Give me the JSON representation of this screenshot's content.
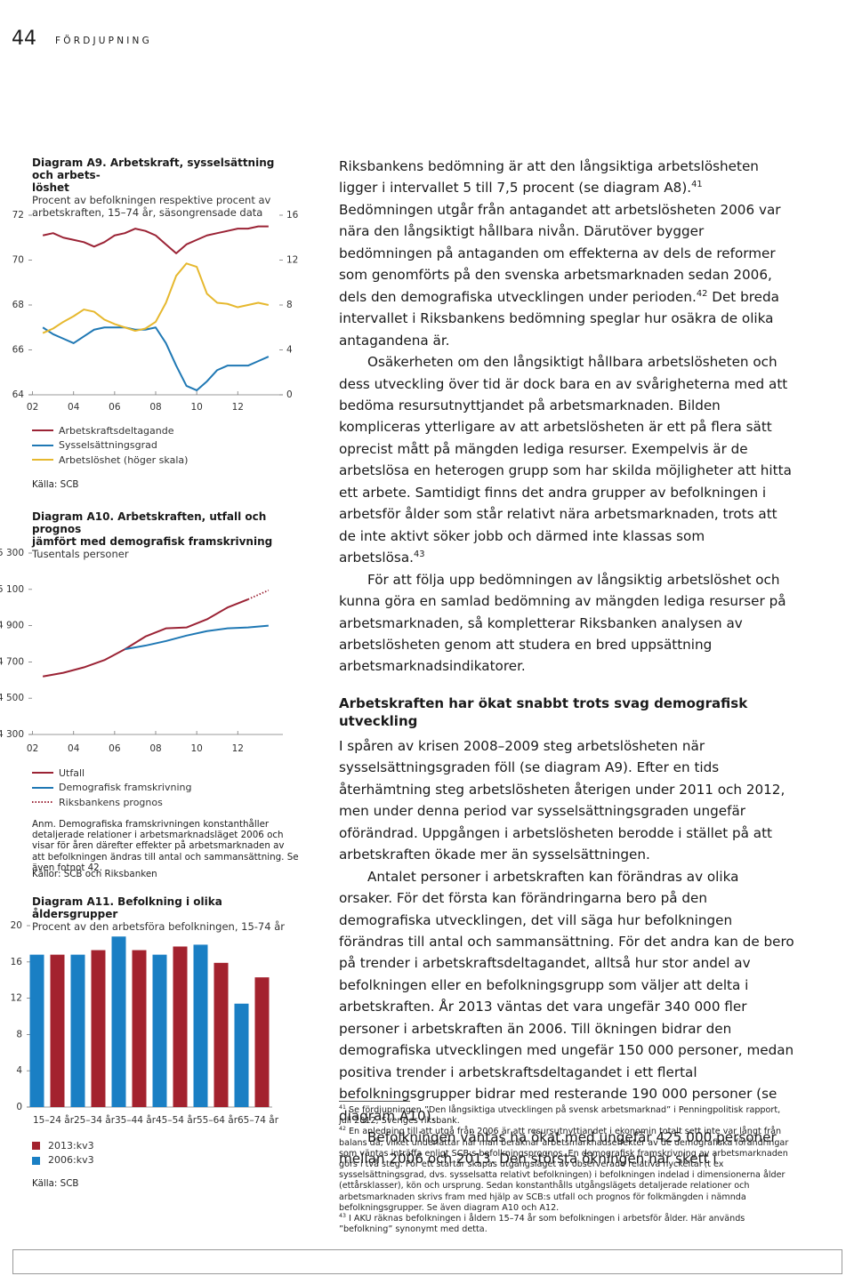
{
  "header": {
    "page_number": "44",
    "section": "FÖRDJUPNING"
  },
  "chart_data": [
    {
      "type": "line",
      "title": [
        "Diagram A9. Arbetskraft, sysselsättning och arbets-",
        "löshet"
      ],
      "subtitle": "Procent av befolkningen respektive procent av arbetskraften, 15–74 år, säsongrensade data",
      "source": "Källa: SCB",
      "x": [
        2002.5,
        2003,
        2003.5,
        2004,
        2004.5,
        2005,
        2005.5,
        2006,
        2006.5,
        2007,
        2007.5,
        2008,
        2008.5,
        2009,
        2009.5,
        2010,
        2010.5,
        2011,
        2011.5,
        2012,
        2012.5,
        2013,
        2013.5
      ],
      "xlim": [
        2001.8,
        2014.2
      ],
      "xticks": [
        {
          "value": 2002,
          "label": "02"
        },
        {
          "value": 2004,
          "label": "04"
        },
        {
          "value": 2006,
          "label": "06"
        },
        {
          "value": 2008,
          "label": "08"
        },
        {
          "value": 2010,
          "label": "10"
        },
        {
          "value": 2012,
          "label": "12"
        }
      ],
      "ylim": [
        64,
        72
      ],
      "yticks": [
        64,
        66,
        68,
        70,
        72
      ],
      "y2lim": [
        0,
        16
      ],
      "y2ticks": [
        0,
        4,
        8,
        12,
        16
      ],
      "series": [
        {
          "name": "Arbetskraftsdeltagande",
          "color": "#9b2335",
          "values": [
            71.1,
            71.2,
            71.0,
            70.9,
            70.8,
            70.6,
            70.8,
            71.1,
            71.2,
            71.4,
            71.3,
            71.1,
            70.7,
            70.3,
            70.7,
            70.9,
            71.1,
            71.2,
            71.3,
            71.4,
            71.4,
            71.5,
            71.5
          ]
        },
        {
          "name": "Sysselsättningsgrad",
          "color": "#1f78b4",
          "values": [
            67.0,
            66.7,
            66.5,
            66.3,
            66.6,
            66.9,
            67.0,
            67.0,
            67.0,
            66.9,
            66.9,
            67.0,
            66.3,
            65.3,
            64.4,
            64.2,
            64.6,
            65.1,
            65.3,
            65.3,
            65.3,
            65.5,
            65.7
          ]
        },
        {
          "name": "Arbetslöshet (höger skala)",
          "color": "#e6b82e",
          "axis": "y2",
          "values": [
            5.5,
            5.9,
            6.5,
            7.0,
            7.6,
            7.4,
            6.7,
            6.3,
            6.0,
            5.7,
            5.9,
            6.5,
            8.2,
            10.6,
            11.7,
            11.4,
            9.0,
            8.2,
            8.1,
            7.8,
            8.0,
            8.2,
            8.0
          ]
        }
      ]
    },
    {
      "type": "line",
      "title": [
        "Diagram A10. Arbetskraften, utfall och prognos",
        "jämfört med demografisk framskrivning"
      ],
      "subtitle": "Tusentals personer",
      "note": "Anm. Demografiska framskrivningen konstanthåller detaljerade relationer i arbetsmarknadsläget 2006 och visar för åren därefter effekter på arbetsmarknaden av att befolkningen ändras till antal och sammansättning. Se även fotnot 42.",
      "source": "Källor: SCB och Riksbanken",
      "xlim": [
        2001.8,
        2014.2
      ],
      "xticks": [
        {
          "value": 2002,
          "label": "02"
        },
        {
          "value": 2004,
          "label": "04"
        },
        {
          "value": 2006,
          "label": "06"
        },
        {
          "value": 2008,
          "label": "08"
        },
        {
          "value": 2010,
          "label": "10"
        },
        {
          "value": 2012,
          "label": "12"
        }
      ],
      "ylim": [
        4300,
        5300
      ],
      "yticks": [
        {
          "value": 4300,
          "label": "4 300"
        },
        {
          "value": 4500,
          "label": "4 500"
        },
        {
          "value": 4700,
          "label": "4 700"
        },
        {
          "value": 4900,
          "label": "4 900"
        },
        {
          "value": 5100,
          "label": "5 100"
        },
        {
          "value": 5300,
          "label": "5 300"
        }
      ],
      "series": [
        {
          "name": "Utfall",
          "color": "#9b2335",
          "x": [
            2002.5,
            2003.5,
            2004.5,
            2005.5,
            2006.5,
            2007.5,
            2008.5,
            2009.5,
            2010.5,
            2011.5,
            2012.5
          ],
          "values": [
            4620,
            4640,
            4670,
            4710,
            4770,
            4840,
            4885,
            4890,
            4935,
            5000,
            5045
          ]
        },
        {
          "name": "Demografisk framskrivning",
          "color": "#1f78b4",
          "x": [
            2006.5,
            2007.5,
            2008.5,
            2009.5,
            2010.5,
            2011.5,
            2012.5,
            2013.5
          ],
          "values": [
            4770,
            4790,
            4815,
            4845,
            4870,
            4885,
            4890,
            4900
          ]
        },
        {
          "name": "Riksbankens prognos",
          "color": "#9b2335",
          "style": "dotted",
          "x": [
            2012.5,
            2013.5
          ],
          "values": [
            5045,
            5095
          ]
        }
      ]
    },
    {
      "type": "bar",
      "title": [
        "Diagram A11. Befolkning i olika åldersgrupper"
      ],
      "subtitle": "Procent av den arbetsföra befolkningen, 15-74 år",
      "source": "Källa: SCB",
      "categories": [
        "15–24 år",
        "25–34 år",
        "35–44 år",
        "45–54 år",
        "55–64 år",
        "65–74 år"
      ],
      "ylim": [
        0,
        20
      ],
      "yticks": [
        0,
        4,
        8,
        12,
        16,
        20
      ],
      "series": [
        {
          "name": "2013:kv3",
          "color": "#a3222e",
          "values": [
            16.8,
            17.3,
            17.3,
            17.7,
            15.9,
            14.3
          ]
        },
        {
          "name": "2006:kv3",
          "color": "#1a7fc4",
          "values": [
            16.8,
            16.8,
            18.8,
            16.8,
            17.9,
            11.4
          ]
        }
      ]
    }
  ],
  "body": [
    {
      "segments": [
        {
          "text": "Riksbankens bedömning är att den långsiktiga arbetslösheten ligger i intervallet 5 till 7,5 procent (se diagram A8)."
        },
        {
          "sup": "41"
        },
        {
          "text": " Bedömningen utgår från antagandet att arbetslösheten 2006 var nära den långsiktigt hållbara nivån. Därutöver bygger bedömningen på antaganden om effekterna av dels de reformer som genomförts på den svenska arbetsmarknaden sedan 2006, dels den demografiska utvecklingen under perioden."
        },
        {
          "sup": "42"
        },
        {
          "text": " Det breda intervallet i Riksbankens bedömning speglar hur osäkra de olika antagandena är."
        }
      ]
    },
    {
      "segments": [
        {
          "text": "Osäkerheten om den långsiktigt hållbara arbetslösheten och dess utveckling över tid är dock bara en av svårigheterna med att bedöma resursutnyttjandet på arbetsmarknaden. Bilden kompliceras ytterligare av att arbetslösheten är ett på flera sätt oprecist mått på mängden lediga resurser. Exempelvis är de arbetslösa en heterogen grupp som har skilda möjligheter att hitta ett arbete. Samtidigt finns det andra grupper av befolkningen i arbetsför ålder som står relativt nära arbetsmarknaden, trots att de inte aktivt söker jobb och därmed inte klassas som arbetslösa."
        },
        {
          "sup": "43"
        }
      ]
    },
    {
      "segments": [
        {
          "text": "För att följa upp bedömningen av långsiktig arbetslöshet och kunna göra en samlad bedömning av mängden lediga resurser på arbetsmarknaden, så kompletterar Riksbanken analysen av arbetslösheten genom att studera en bred uppsättning arbetsmarknadsindikatorer."
        }
      ]
    },
    {
      "heading": "Arbetskraften har ökat snabbt trots svag demografisk utveckling"
    },
    {
      "segments": [
        {
          "text": "I spåren av krisen 2008–2009 steg arbetslösheten när sysselsättningsgraden föll (se diagram A9). Efter en tids återhämtning steg arbetslösheten återigen under 2011 och 2012, men under denna period var sysselsättningsgraden ungefär oförändrad. Uppgången i arbetslösheten berodde i stället på att arbetskraften ökade mer än sysselsättningen."
        }
      ]
    },
    {
      "segments": [
        {
          "text": "Antalet personer i arbetskraften kan förändras av olika orsaker. För det första kan förändringarna bero på den demografiska utvecklingen, det vill säga hur befolkningen förändras till antal och sammansättning. För det andra kan de bero på trender i arbetskraftsdeltagandet, alltså hur stor andel av befolkningen eller en befolkningsgrupp som väljer att delta i arbetskraften. År 2013 väntas det vara ungefär 340 000 fler personer i arbetskraften än 2006. Till ökningen bidrar den demografiska utvecklingen med ungefär 150 000 personer, medan positiva trender i arbetskraftsdeltagandet i ett flertal befolkningsgrupper bidrar med resterande 190 000 personer (se diagram A10)."
        }
      ]
    },
    {
      "segments": [
        {
          "text": "Befolkningen väntas ha ökat med ungefär 425 000 personer mellan 2006 och 2013. Den största ökningen har skett i"
        }
      ]
    }
  ],
  "footnotes": [
    {
      "number": "41",
      "text": "Se fördjupningen ”Den långsiktiga utvecklingen på svensk arbetsmarknad” i Penningpolitisk rapport, juli 2012, Sveriges riksbank."
    },
    {
      "number": "42",
      "text": "En anledning till att utgå från 2006 är att resursutnyttjandet i ekonomin totalt sett inte var långt från balans då, vilket underlättar när man beräknar arbetsmarknadseffekter av de demografiska förändringar som väntas inträffa enligt SCB:s befolkningsprognos. En demografisk framskrivning av arbetsmarknaden görs i två steg. För ett startår skapas utgångsläget av observerade relativa nyckeltal (t ex sysselsättningsgrad, dvs. sysselsatta relativt befolkningen) i befolkningen indelad i dimensionerna ålder (ettårsklasser), kön och ursprung. Sedan konstanthålls utgångslägets detaljerade relationer och arbetsmarknaden skrivs fram med hjälp av SCB:s utfall och prognos för folkmängden i nämnda befolkningsgrupper. Se även diagram A10 och A12."
    },
    {
      "number": "43",
      "text": "I AKU räknas befolkningen i åldern 15–74 år som befolkningen i arbetsför ålder. Här används ”befolkning” synonymt med detta."
    }
  ]
}
